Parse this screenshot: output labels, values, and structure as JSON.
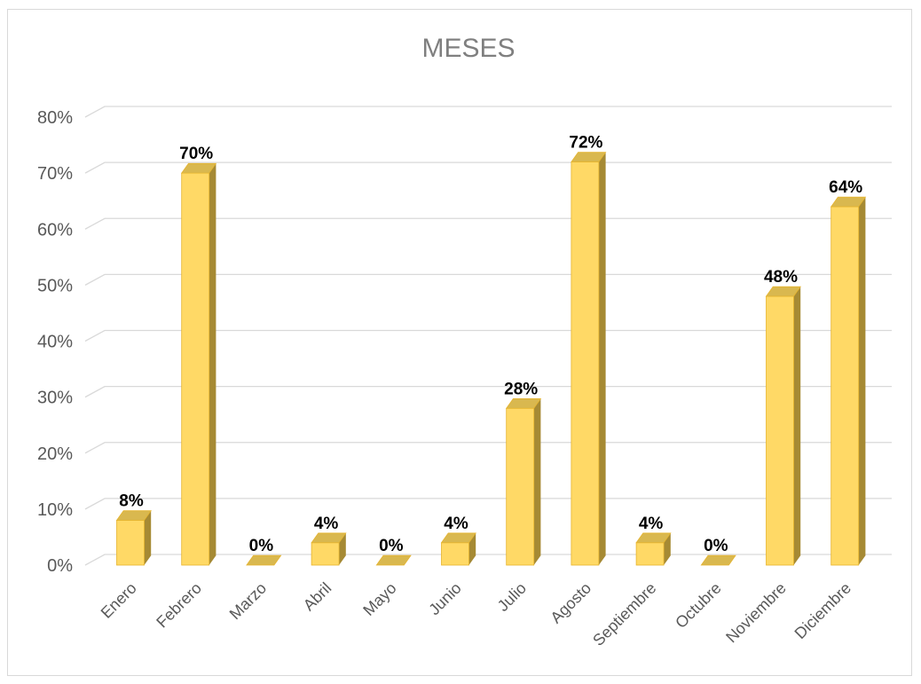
{
  "chart_data": {
    "type": "bar",
    "title": "MESES",
    "categories": [
      "Enero",
      "Febrero",
      "Marzo",
      "Abril",
      "Mayo",
      "Junio",
      "Julio",
      "Agosto",
      "Septiembre",
      "Octubre",
      "Noviembre",
      "Diciembre"
    ],
    "values": [
      8,
      70,
      0,
      4,
      0,
      4,
      28,
      72,
      4,
      0,
      48,
      64
    ],
    "value_labels": [
      "8%",
      "70%",
      "0%",
      "4%",
      "0%",
      "4%",
      "28%",
      "72%",
      "4%",
      "0%",
      "48%",
      "64%"
    ],
    "y_ticks": [
      "0%",
      "10%",
      "20%",
      "30%",
      "40%",
      "50%",
      "60%",
      "70%",
      "80%"
    ],
    "ylim": [
      0,
      80
    ],
    "grid": true,
    "legend": "none",
    "style": "3d-column",
    "colors": {
      "bar_front": "#ffd966",
      "bar_side": "#a68a34",
      "bar_top": "#d9b84f",
      "bar_edge": "#e6b42e",
      "grid": "#d9d9d9"
    }
  }
}
